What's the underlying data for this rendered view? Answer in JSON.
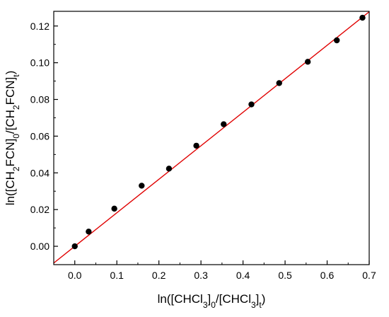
{
  "chart_data": {
    "type": "scatter",
    "xlabel": {
      "parts": [
        {
          "t": "ln([CHCl",
          "sub": false
        },
        {
          "t": "3",
          "sub": true
        },
        {
          "t": "]",
          "sub": false
        },
        {
          "t": "0",
          "sub": true
        },
        {
          "t": "/[CHCl",
          "sub": false
        },
        {
          "t": "3",
          "sub": true
        },
        {
          "t": "]",
          "sub": false
        },
        {
          "t": "t",
          "sub": true
        },
        {
          "t": ")",
          "sub": false
        }
      ]
    },
    "ylabel": {
      "parts": [
        {
          "t": "ln([CH",
          "sub": false
        },
        {
          "t": "2",
          "sub": true
        },
        {
          "t": "FCN]",
          "sub": false
        },
        {
          "t": "0",
          "sub": true
        },
        {
          "t": "/[CH",
          "sub": false
        },
        {
          "t": "2",
          "sub": true
        },
        {
          "t": "FCN]",
          "sub": false
        },
        {
          "t": "t",
          "sub": true
        },
        {
          "t": ")",
          "sub": false
        }
      ]
    },
    "xlim": [
      -0.05,
      0.7
    ],
    "ylim": [
      -0.01,
      0.128
    ],
    "xticks": [
      0.0,
      0.1,
      0.2,
      0.3,
      0.4,
      0.5,
      0.6,
      0.7
    ],
    "xtick_labels": [
      "0.0",
      "0.1",
      "0.2",
      "0.3",
      "0.4",
      "0.5",
      "0.6",
      "0.7"
    ],
    "yticks": [
      0.0,
      0.02,
      0.04,
      0.06,
      0.08,
      0.1,
      0.12
    ],
    "ytick_labels": [
      "0.00",
      "0.02",
      "0.04",
      "0.06",
      "0.08",
      "0.10",
      "0.12"
    ],
    "grid": false,
    "points": [
      {
        "x": 0.0,
        "y": 0.0
      },
      {
        "x": 0.033,
        "y": 0.008
      },
      {
        "x": 0.094,
        "y": 0.0205
      },
      {
        "x": 0.159,
        "y": 0.033
      },
      {
        "x": 0.224,
        "y": 0.0423
      },
      {
        "x": 0.289,
        "y": 0.0548
      },
      {
        "x": 0.354,
        "y": 0.0665
      },
      {
        "x": 0.42,
        "y": 0.0773
      },
      {
        "x": 0.486,
        "y": 0.0889
      },
      {
        "x": 0.554,
        "y": 0.1005
      },
      {
        "x": 0.623,
        "y": 0.1122
      },
      {
        "x": 0.684,
        "y": 0.1245
      }
    ],
    "fit_line": {
      "slope": 0.1825,
      "intercept": 0.0,
      "x_range": [
        -0.05,
        0.7
      ],
      "color": "#e00000"
    },
    "marker_color": "#000000"
  }
}
